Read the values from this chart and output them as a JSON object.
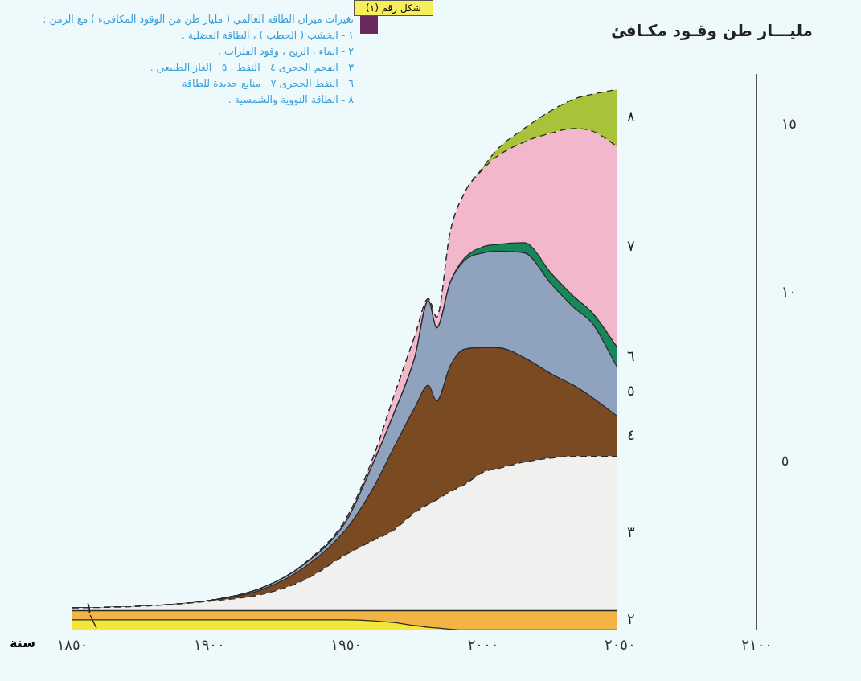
{
  "chart_data": {
    "type": "area",
    "title": "مليـــار طن وقـود مكـافئ",
    "subtitle": "شكل رقم (١)",
    "xlabel": "سنة",
    "x": [
      1850,
      1875,
      1900,
      1920,
      1935,
      1950,
      1960,
      1967,
      1975,
      1980,
      1983,
      1988,
      1993,
      2000,
      2005,
      2015,
      2025,
      2033,
      2040,
      2049
    ],
    "series": [
      {
        "name": "١",
        "color": "#f5e63a",
        "line_style": "solid",
        "values": [
          0.3,
          0.3,
          0.3,
          0.3,
          0.3,
          0.3,
          0.27,
          0.22,
          0.13,
          0.08,
          0.06,
          0.02,
          0,
          0,
          0,
          0,
          0,
          0,
          0,
          0
        ]
      },
      {
        "name": "٢",
        "color": "#f2b544",
        "line_style": "solid",
        "values": [
          0.27,
          0.27,
          0.27,
          0.27,
          0.27,
          0.27,
          0.3,
          0.35,
          0.44,
          0.49,
          0.51,
          0.55,
          0.57,
          0.57,
          0.57,
          0.57,
          0.57,
          0.57,
          0.57,
          0.57
        ]
      },
      {
        "name": "٣",
        "color": "#f0f0ee",
        "line_style": "dashed",
        "values": [
          0.08,
          0.13,
          0.28,
          0.5,
          0.92,
          1.67,
          2.09,
          2.37,
          2.91,
          3.16,
          3.29,
          3.53,
          3.73,
          4.11,
          4.21,
          4.41,
          4.53,
          4.58,
          4.58,
          4.58
        ]
      },
      {
        "name": "٤",
        "color": "#7a4a22",
        "line_style": "solid",
        "values": [
          0,
          0,
          0.02,
          0.15,
          0.38,
          0.75,
          1.57,
          2.41,
          3.11,
          3.53,
          2.93,
          3.74,
          4.03,
          3.7,
          3.6,
          3.1,
          2.49,
          2.11,
          1.74,
          1.19
        ]
      },
      {
        "name": "٥",
        "color": "#8fa3bf",
        "line_style": "solid",
        "values": [
          0,
          0,
          0,
          0.05,
          0.1,
          0.24,
          0.75,
          0.99,
          1.49,
          2.52,
          2.17,
          2.48,
          2.62,
          2.81,
          2.86,
          3.11,
          2.66,
          2.32,
          2.19,
          1.45
        ]
      },
      {
        "name": "٦",
        "color": "#17885a",
        "line_style": "solid",
        "values": [
          0,
          0,
          0,
          0,
          0,
          0,
          0,
          0,
          0,
          0,
          0,
          0,
          0.07,
          0.18,
          0.2,
          0.3,
          0.32,
          0.32,
          0.32,
          0.59
        ]
      },
      {
        "name": "٧",
        "color": "#f3b7cb",
        "line_style": "dashed",
        "values": [
          0,
          0,
          0,
          0,
          0.02,
          0.08,
          0.17,
          0.5,
          0.63,
          0.05,
          0.32,
          1.5,
          1.92,
          2.31,
          2.61,
          2.99,
          4.18,
          4.98,
          5.4,
          5.97
        ]
      },
      {
        "name": "٨",
        "color": "#a8c23a",
        "line_style": "dashed",
        "values": [
          0,
          0,
          0,
          0,
          0,
          0,
          0,
          0,
          0,
          0,
          0,
          0,
          0,
          0.05,
          0.2,
          0.4,
          0.67,
          0.87,
          1.1,
          1.69
        ]
      }
    ],
    "stacked": true,
    "xlim": [
      1850,
      2100
    ],
    "xticks": [
      {
        "value": 1850,
        "label": "١٨٥٠"
      },
      {
        "value": 1900,
        "label": "١٩٠٠"
      },
      {
        "value": 1950,
        "label": "١٩٥٠"
      },
      {
        "value": 2000,
        "label": "٢٠٠٠"
      },
      {
        "value": 2050,
        "label": "٢٠٥٠"
      },
      {
        "value": 2100,
        "label": "٢١٠٠"
      }
    ],
    "ylim": [
      0,
      16.5
    ],
    "yticks": [
      {
        "value": 5,
        "label": "٥"
      },
      {
        "value": 10,
        "label": "١٠"
      },
      {
        "value": 15,
        "label": "١٥"
      }
    ],
    "grid": false,
    "marker": "none",
    "annotations": [
      "تغيرات ميزان الطاقة العالمي ( مليار طن من الوقود المكافىء ) مع الزمن :",
      "١ - الخشب ( الحطب ) ، الطاقة العضلية .",
      "٢ - الماء ، الريح ، وقود الفلزات .",
      "٣ - الفحم الحجرى   ٤ - النفط .   ٥ - الغاز الطبيعي .",
      "٦ - النفط الحجرى   ٧ - منابع جديدة للطاقة",
      "٨ - الطاقة النووية والشمسية ."
    ]
  }
}
